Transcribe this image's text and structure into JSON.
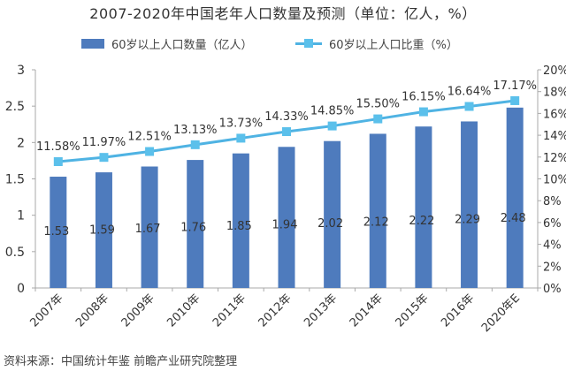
{
  "chart_data": {
    "type": "bar",
    "title": "2007-2020年中国老年人口数量及预测（单位：亿人，%）",
    "categories": [
      "2007年",
      "2008年",
      "2009年",
      "2010年",
      "2011年",
      "2012年",
      "2013年",
      "2014年",
      "2015年",
      "2016年",
      "2020年E"
    ],
    "series": [
      {
        "name": "60岁以上人口数量（亿人）",
        "type": "bar",
        "axis": "left",
        "values": [
          1.53,
          1.59,
          1.67,
          1.76,
          1.85,
          1.94,
          2.02,
          2.12,
          2.22,
          2.29,
          2.48
        ],
        "labels": [
          "1.53",
          "1.59",
          "1.67",
          "1.76",
          "1.85",
          "1.94",
          "2.02",
          "2.12",
          "2.22",
          "2.29",
          "2.48"
        ]
      },
      {
        "name": "60岁以上人口比重（%）",
        "type": "line",
        "axis": "right",
        "values": [
          11.58,
          11.97,
          12.51,
          13.13,
          13.73,
          14.33,
          14.85,
          15.5,
          16.15,
          16.64,
          17.17
        ],
        "labels": [
          "11.58%",
          "11.97%",
          "12.51%",
          "13.13%",
          "13.73%",
          "14.33%",
          "14.85%",
          "15.50%",
          "16.15%",
          "16.64%",
          "17.17%"
        ]
      }
    ],
    "y_left": {
      "min": 0,
      "max": 3,
      "ticks": [
        "0",
        "0.5",
        "1",
        "1.5",
        "2",
        "2.5",
        "3"
      ],
      "tick_values": [
        0,
        0.5,
        1,
        1.5,
        2,
        2.5,
        3
      ]
    },
    "y_right": {
      "min": 0,
      "max": 20,
      "ticks": [
        "0%",
        "2%",
        "4%",
        "6%",
        "8%",
        "10%",
        "12%",
        "14%",
        "16%",
        "18%",
        "20%"
      ],
      "tick_values": [
        0,
        2,
        4,
        6,
        8,
        10,
        12,
        14,
        16,
        18,
        20
      ]
    },
    "xlabel": "",
    "ylabel": "",
    "grid": false,
    "legend_position": "top",
    "colors": {
      "bar": "#4e7bbd",
      "line": "#4fb3e3",
      "marker": "#5bc0eb",
      "axis": "#a9a9a9",
      "text": "#333333"
    }
  },
  "source": "资料来源：中国统计年鉴 前瞻产业研究院整理"
}
